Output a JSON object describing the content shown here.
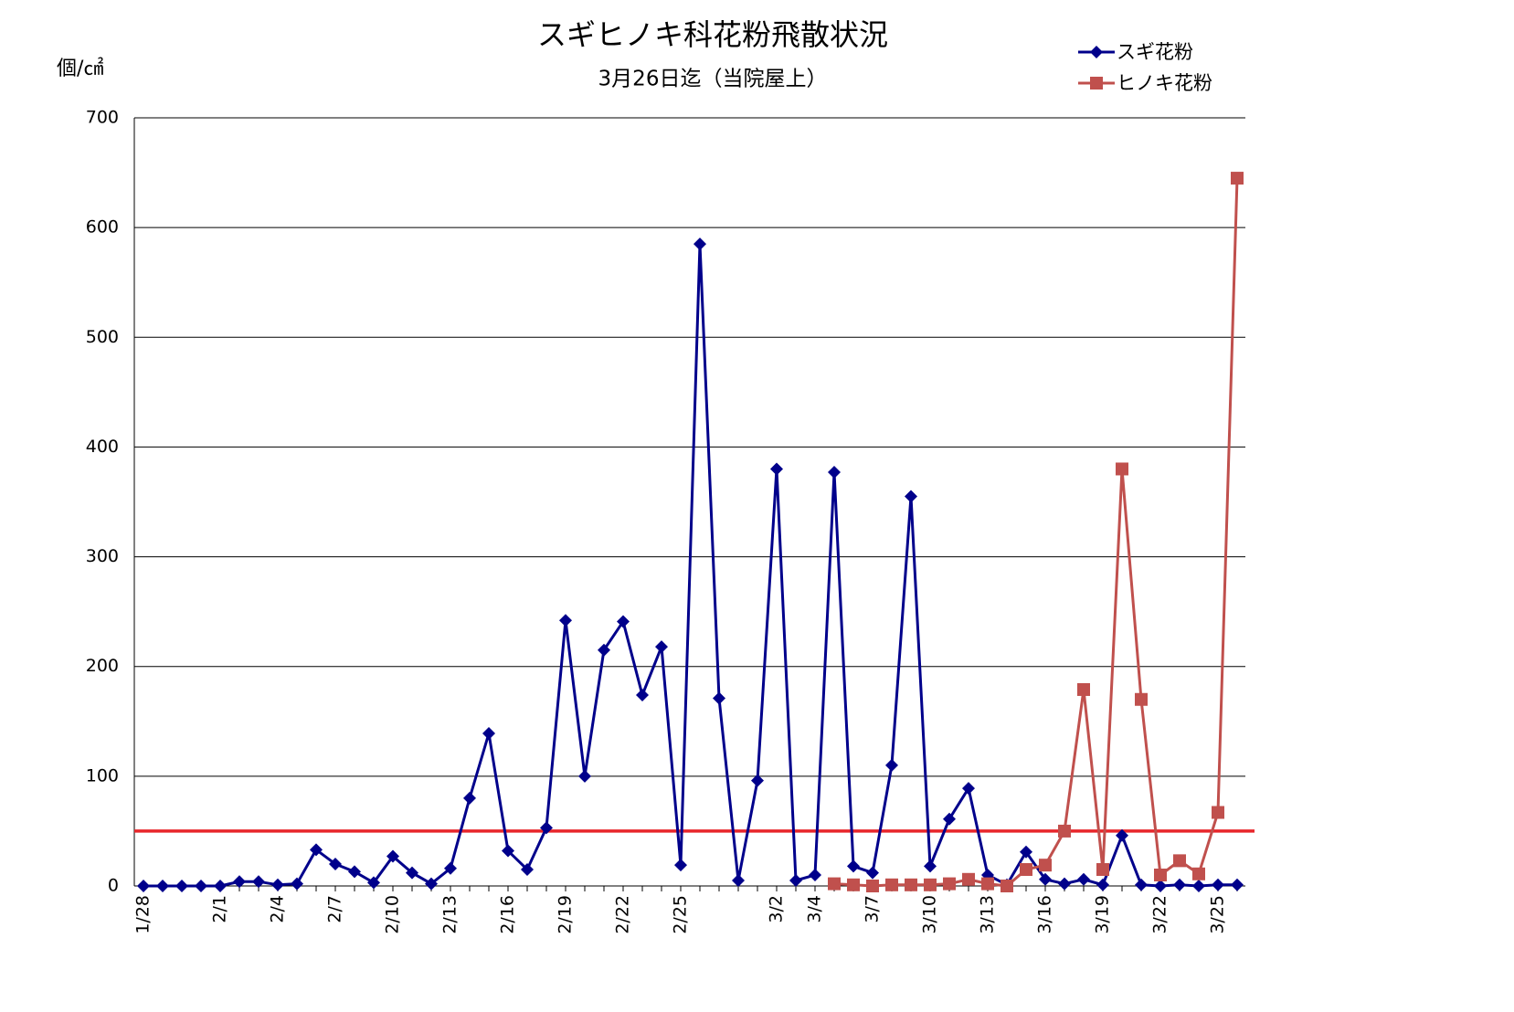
{
  "chart_data": {
    "type": "line",
    "title": "スギヒノキ科花粉飛散状況",
    "subtitle": "3月26日迄（当院屋上）",
    "y_label": "個/㎠",
    "categories": [
      "1/28",
      null,
      null,
      null,
      "2/1",
      null,
      null,
      "2/4",
      null,
      null,
      "2/7",
      null,
      null,
      "2/10",
      null,
      null,
      "2/13",
      null,
      null,
      "2/16",
      null,
      null,
      "2/19",
      null,
      null,
      "2/22",
      null,
      null,
      "2/25",
      null,
      null,
      null,
      null,
      "3/2",
      null,
      "3/4",
      null,
      null,
      "3/7",
      null,
      null,
      "3/10",
      null,
      null,
      "3/13",
      null,
      null,
      "3/16",
      null,
      null,
      "3/19",
      null,
      null,
      "3/22",
      null,
      null,
      "3/25",
      null
    ],
    "series": [
      {
        "name": "スギ花粉",
        "color": "#00008b",
        "marker": "diamond",
        "values": [
          0,
          0,
          0,
          0,
          0,
          4,
          4,
          1,
          2,
          33,
          20,
          13,
          3,
          27,
          12,
          2,
          16,
          80,
          139,
          32,
          15,
          53,
          242,
          100,
          215,
          241,
          174,
          218,
          19,
          585,
          171,
          5,
          96,
          380,
          5,
          10,
          377,
          18,
          12,
          110,
          355,
          18,
          61,
          89,
          10,
          1,
          31,
          6,
          2,
          6,
          1,
          46,
          1,
          0,
          1,
          0,
          1,
          1
        ]
      },
      {
        "name": "ヒノキ花粉",
        "color": "#c0504d",
        "marker": "square",
        "values": [
          null,
          null,
          null,
          null,
          null,
          null,
          null,
          null,
          null,
          null,
          null,
          null,
          null,
          null,
          null,
          null,
          null,
          null,
          null,
          null,
          null,
          null,
          null,
          null,
          null,
          null,
          null,
          null,
          null,
          null,
          null,
          null,
          null,
          null,
          null,
          null,
          2,
          1,
          0,
          1,
          1,
          1,
          2,
          6,
          2,
          0,
          15,
          19,
          50,
          179,
          15,
          380,
          170,
          10,
          23,
          11,
          67,
          645
        ]
      }
    ],
    "reference_line": {
      "value": 50,
      "color": "#e8262b"
    },
    "ylim": [
      0,
      700
    ],
    "yticks": [
      0,
      100,
      200,
      300,
      400,
      500,
      600,
      700
    ],
    "grid": true,
    "legend": "top-right"
  }
}
